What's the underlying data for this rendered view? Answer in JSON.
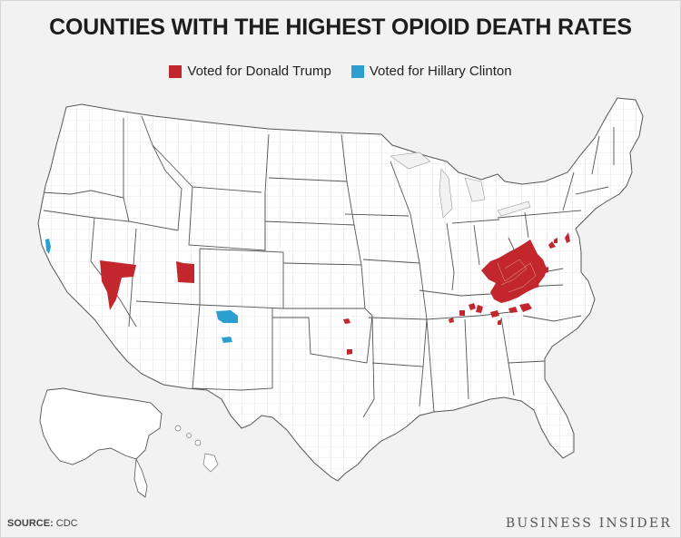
{
  "title": "COUNTIES WITH THE HIGHEST OPIOID DEATH RATES",
  "legend": [
    {
      "label": "Voted for Donald Trump",
      "color": "#c1272d"
    },
    {
      "label": "Voted for Hillary Clinton",
      "color": "#2a9fd0"
    }
  ],
  "source": {
    "label": "SOURCE:",
    "value": "CDC"
  },
  "brand": "BUSINESS INSIDER",
  "map": {
    "base_fill": "#ffffff",
    "state_stroke": "#555555",
    "county_stroke": "#cfcfcf"
  }
}
